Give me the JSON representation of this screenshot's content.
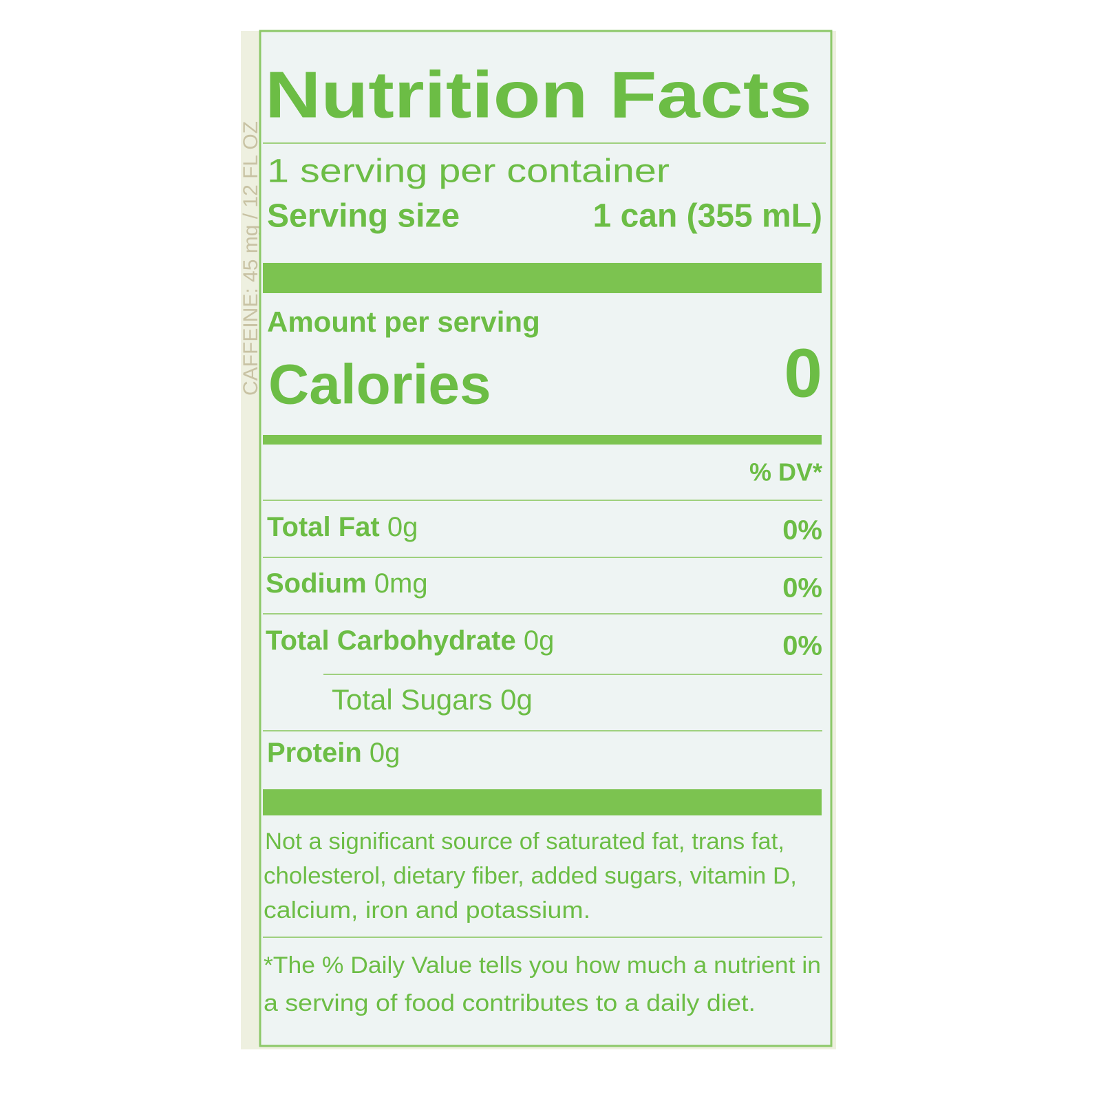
{
  "side_text": "CAFFEINE: 45 mg / 12 FL OZ",
  "label": {
    "title": "Nutrition Facts",
    "servings": "1 serving per container",
    "serving_size": {
      "label": "Serving size",
      "value": "1 can (355 mL)"
    },
    "amount_per_serving": "Amount per serving",
    "calories": {
      "label": "Calories",
      "value": "0"
    },
    "dv_header": "% DV*",
    "rows": [
      {
        "name": "Total Fat",
        "amount": "0g",
        "dv": "0%"
      },
      {
        "name": "Sodium",
        "amount": "0mg",
        "dv": "0%"
      },
      {
        "name": "Total Carbohydrate",
        "amount": "0g",
        "dv": "0%"
      },
      {
        "name": "Total Sugars",
        "amount": "0g"
      },
      {
        "name": "Protein",
        "amount": "0g"
      }
    ],
    "note": [
      "Not a significant source of saturated fat, trans fat,",
      "cholesterol, dietary fiber, added sugars, vitamin D,",
      "calcium, iron and potassium."
    ],
    "footnote": [
      "*The % Daily Value tells you how much a nutrient in",
      "a serving of food contributes to a daily diet."
    ]
  }
}
